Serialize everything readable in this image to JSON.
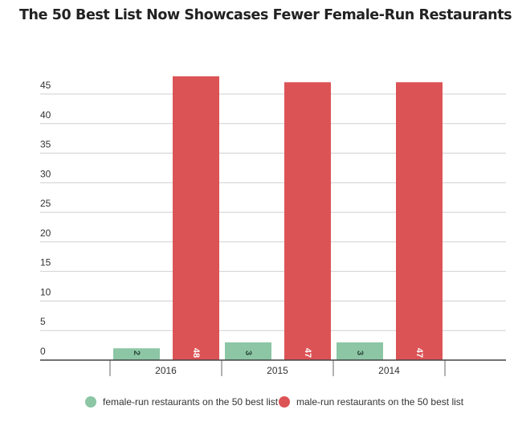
{
  "chart_data": {
    "type": "bar",
    "title": "The 50 Best List Now Showcases Fewer Female-Run Restaurants",
    "categories": [
      "2016",
      "2015",
      "2014"
    ],
    "series": [
      {
        "name": "female-run restaurants on the 50 best list",
        "values": [
          2,
          3,
          3
        ],
        "color": "#8cc6a5"
      },
      {
        "name": "male-run restaurants on the 50 best list",
        "values": [
          48,
          47,
          47
        ],
        "color": "#dc5356"
      }
    ],
    "yticks": [
      0,
      5,
      10,
      15,
      20,
      25,
      30,
      35,
      40,
      45
    ],
    "ylim": [
      0,
      50
    ],
    "grid": true,
    "legend": "bottom",
    "data_labels": true
  }
}
